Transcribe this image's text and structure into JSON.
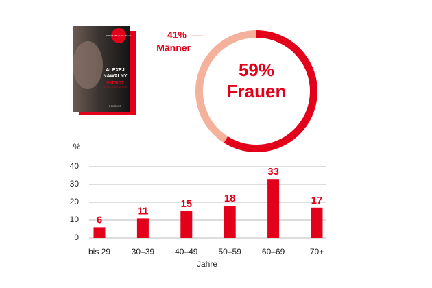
{
  "book_cover": {
    "badge": "SPIEGEL Bestseller Platz 1",
    "author": [
      "ALEXEJ",
      "NAWALNY"
    ],
    "title": "PATRIOT",
    "subtitle": "MEINE GESCHICHTE",
    "publisher": "S.FISCHER"
  },
  "chart_data": [
    {
      "type": "donut",
      "categories": [
        "Frauen",
        "Männer"
      ],
      "values": [
        59,
        41
      ],
      "value_labels": [
        "59%",
        "41%"
      ],
      "colors": [
        "#e2001a",
        "#f4b19c"
      ]
    },
    {
      "type": "bar",
      "y_label": "%",
      "x_label": "Jahre",
      "categories": [
        "bis 29",
        "30–39",
        "40–49",
        "50–59",
        "60–69",
        "70+"
      ],
      "values": [
        6,
        11,
        15,
        18,
        33,
        17
      ],
      "color": "#e2001a",
      "ylim": [
        0,
        40
      ],
      "yticks": [
        0,
        10,
        20,
        30,
        40
      ],
      "grid": true
    }
  ]
}
